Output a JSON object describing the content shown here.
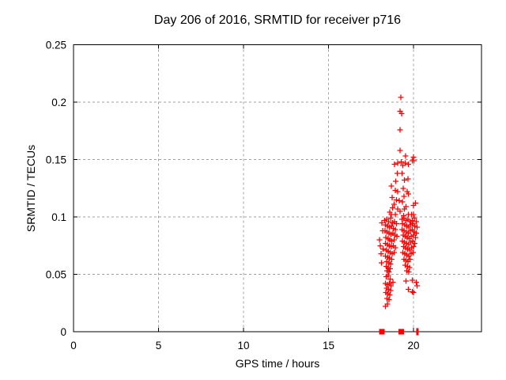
{
  "chart_data": {
    "type": "scatter",
    "title": "Day 206 of 2016, SRMTID for receiver p716",
    "xlabel": "GPS time / hours",
    "ylabel": "SRMTID / TECUs",
    "xlim": [
      0,
      24
    ],
    "ylim": [
      0,
      0.25
    ],
    "xticks": {
      "values": [
        0,
        5,
        10,
        15,
        20
      ],
      "labels": [
        "0",
        "5",
        "10",
        "15",
        "20"
      ]
    },
    "yticks": {
      "values": [
        0,
        0.05,
        0.1,
        0.15,
        0.2,
        0.25
      ],
      "labels": [
        "0",
        "0.05",
        "0.1",
        "0.15",
        "0.2",
        "0.25"
      ]
    },
    "grid": true,
    "legend": "none",
    "axis_color": "#000000",
    "grid_color": "#a0a0a0",
    "marker": {
      "symbol": "plus",
      "color": "#ff0000",
      "size": 7
    },
    "series_name": "SRMTID",
    "points": [
      [
        19.25,
        0.204
      ],
      [
        19.21,
        0.192
      ],
      [
        19.3,
        0.19
      ],
      [
        19.21,
        0.176
      ],
      [
        19.21,
        0.158
      ],
      [
        19.53,
        0.153
      ],
      [
        19.99,
        0.152
      ],
      [
        20.02,
        0.149
      ],
      [
        19.94,
        0.149
      ],
      [
        18.88,
        0.146
      ],
      [
        19.07,
        0.147
      ],
      [
        19.28,
        0.148
      ],
      [
        19.37,
        0.145
      ],
      [
        19.52,
        0.147
      ],
      [
        19.7,
        0.146
      ],
      [
        19.04,
        0.138
      ],
      [
        19.32,
        0.138
      ],
      [
        19.47,
        0.132
      ],
      [
        19.67,
        0.133
      ],
      [
        18.95,
        0.131
      ],
      [
        18.7,
        0.127
      ],
      [
        18.93,
        0.123
      ],
      [
        19.07,
        0.122
      ],
      [
        19.63,
        0.122
      ],
      [
        19.7,
        0.12
      ],
      [
        19.4,
        0.125
      ],
      [
        18.74,
        0.117
      ],
      [
        19.0,
        0.115
      ],
      [
        19.16,
        0.114
      ],
      [
        20.12,
        0.112
      ],
      [
        19.99,
        0.11
      ],
      [
        19.35,
        0.113
      ],
      [
        19.45,
        0.118
      ],
      [
        18.85,
        0.111
      ],
      [
        18.77,
        0.108
      ],
      [
        19.07,
        0.107
      ],
      [
        19.47,
        0.107
      ],
      [
        18.7,
        0.102
      ],
      [
        18.93,
        0.102
      ],
      [
        19.43,
        0.101
      ],
      [
        19.7,
        0.102
      ],
      [
        19.89,
        0.102
      ],
      [
        20.01,
        0.102
      ],
      [
        19.21,
        0.105
      ],
      [
        18.6,
        0.104
      ],
      [
        19.55,
        0.109
      ],
      [
        18.3,
        0.097
      ],
      [
        18.42,
        0.098
      ],
      [
        18.53,
        0.096
      ],
      [
        18.64,
        0.099
      ],
      [
        18.76,
        0.095
      ],
      [
        18.88,
        0.096
      ],
      [
        18.99,
        0.094
      ],
      [
        18.35,
        0.093
      ],
      [
        18.47,
        0.092
      ],
      [
        18.58,
        0.091
      ],
      [
        18.7,
        0.092
      ],
      [
        18.82,
        0.09
      ],
      [
        18.94,
        0.089
      ],
      [
        18.15,
        0.095
      ],
      [
        18.32,
        0.088
      ],
      [
        18.44,
        0.087
      ],
      [
        18.55,
        0.086
      ],
      [
        18.67,
        0.085
      ],
      [
        18.79,
        0.086
      ],
      [
        18.91,
        0.084
      ],
      [
        19.02,
        0.083
      ],
      [
        18.18,
        0.088
      ],
      [
        18.38,
        0.082
      ],
      [
        18.5,
        0.081
      ],
      [
        18.61,
        0.08
      ],
      [
        18.73,
        0.079
      ],
      [
        18.85,
        0.08
      ],
      [
        18.0,
        0.08
      ],
      [
        18.34,
        0.077
      ],
      [
        18.46,
        0.076
      ],
      [
        18.57,
        0.075
      ],
      [
        18.69,
        0.074
      ],
      [
        18.81,
        0.075
      ],
      [
        18.92,
        0.073
      ],
      [
        18.05,
        0.075
      ],
      [
        18.4,
        0.071
      ],
      [
        18.52,
        0.07
      ],
      [
        18.63,
        0.069
      ],
      [
        18.75,
        0.068
      ],
      [
        18.87,
        0.069
      ],
      [
        18.1,
        0.068
      ],
      [
        18.2,
        0.072
      ],
      [
        18.36,
        0.066
      ],
      [
        18.48,
        0.065
      ],
      [
        18.59,
        0.064
      ],
      [
        18.71,
        0.063
      ],
      [
        18.12,
        0.06
      ],
      [
        18.43,
        0.061
      ],
      [
        18.55,
        0.06
      ],
      [
        18.66,
        0.059
      ],
      [
        18.39,
        0.057
      ],
      [
        18.51,
        0.056
      ],
      [
        18.62,
        0.055
      ],
      [
        18.45,
        0.053
      ],
      [
        18.56,
        0.052
      ],
      [
        19.32,
        0.098
      ],
      [
        19.44,
        0.099
      ],
      [
        19.56,
        0.097
      ],
      [
        19.68,
        0.098
      ],
      [
        19.8,
        0.096
      ],
      [
        19.92,
        0.097
      ],
      [
        20.04,
        0.099
      ],
      [
        20.16,
        0.096
      ],
      [
        19.36,
        0.094
      ],
      [
        19.48,
        0.093
      ],
      [
        19.6,
        0.092
      ],
      [
        19.72,
        0.091
      ],
      [
        19.84,
        0.093
      ],
      [
        19.96,
        0.094
      ],
      [
        20.08,
        0.092
      ],
      [
        20.2,
        0.091
      ],
      [
        19.33,
        0.089
      ],
      [
        19.45,
        0.088
      ],
      [
        19.57,
        0.087
      ],
      [
        19.69,
        0.086
      ],
      [
        19.81,
        0.088
      ],
      [
        19.93,
        0.089
      ],
      [
        20.05,
        0.087
      ],
      [
        20.17,
        0.086
      ],
      [
        19.39,
        0.084
      ],
      [
        19.51,
        0.083
      ],
      [
        19.63,
        0.082
      ],
      [
        19.75,
        0.081
      ],
      [
        19.87,
        0.083
      ],
      [
        19.99,
        0.084
      ],
      [
        20.11,
        0.082
      ],
      [
        19.35,
        0.079
      ],
      [
        19.47,
        0.078
      ],
      [
        19.59,
        0.077
      ],
      [
        19.71,
        0.076
      ],
      [
        19.83,
        0.078
      ],
      [
        19.95,
        0.079
      ],
      [
        20.07,
        0.077
      ],
      [
        19.41,
        0.074
      ],
      [
        19.53,
        0.073
      ],
      [
        19.65,
        0.072
      ],
      [
        19.77,
        0.071
      ],
      [
        19.89,
        0.073
      ],
      [
        20.01,
        0.074
      ],
      [
        19.37,
        0.069
      ],
      [
        19.49,
        0.068
      ],
      [
        19.61,
        0.067
      ],
      [
        19.73,
        0.066
      ],
      [
        19.85,
        0.068
      ],
      [
        19.97,
        0.069
      ],
      [
        19.44,
        0.063
      ],
      [
        19.56,
        0.062
      ],
      [
        19.68,
        0.061
      ],
      [
        19.8,
        0.063
      ],
      [
        19.52,
        0.058
      ],
      [
        19.64,
        0.057
      ],
      [
        19.76,
        0.056
      ],
      [
        19.6,
        0.053
      ],
      [
        19.72,
        0.052
      ],
      [
        18.4,
        0.048
      ],
      [
        18.52,
        0.049
      ],
      [
        18.63,
        0.046
      ],
      [
        18.35,
        0.042
      ],
      [
        18.46,
        0.041
      ],
      [
        18.57,
        0.042
      ],
      [
        18.68,
        0.04
      ],
      [
        18.8,
        0.043
      ],
      [
        18.42,
        0.038
      ],
      [
        18.54,
        0.037
      ],
      [
        18.65,
        0.036
      ],
      [
        18.38,
        0.034
      ],
      [
        18.49,
        0.033
      ],
      [
        18.6,
        0.032
      ],
      [
        18.44,
        0.029
      ],
      [
        18.55,
        0.028
      ],
      [
        18.47,
        0.024
      ],
      [
        18.36,
        0.022
      ],
      [
        19.55,
        0.044
      ],
      [
        19.94,
        0.045
      ],
      [
        20.17,
        0.043
      ],
      [
        19.7,
        0.037
      ],
      [
        19.94,
        0.035
      ],
      [
        20.0,
        0.034
      ],
      [
        20.22,
        0.04
      ]
    ],
    "zero_markers": {
      "squares_hours": [
        18.14,
        19.28
      ],
      "tick_hours": [
        20.23
      ]
    }
  }
}
